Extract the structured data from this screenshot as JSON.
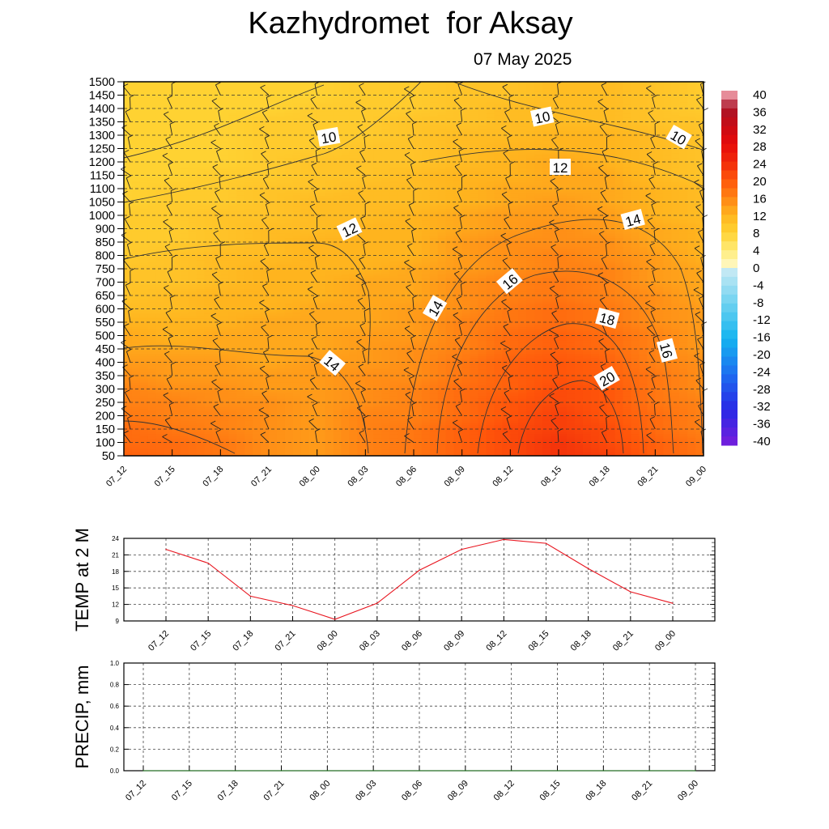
{
  "title": "Kazhydromet  for Aksay",
  "date": "07 May 2025",
  "chart_data": [
    {
      "type": "heatmap",
      "name": "temperature cross-section",
      "x_categories": [
        "07_12",
        "07_15",
        "07_18",
        "07_21",
        "08_00",
        "08_03",
        "08_06",
        "08_09",
        "08_12",
        "08_15",
        "08_18",
        "08_21",
        "09_00"
      ],
      "y_levels": [
        50,
        100,
        150,
        200,
        250,
        300,
        350,
        400,
        450,
        500,
        550,
        600,
        650,
        700,
        750,
        800,
        850,
        900,
        1000,
        1050,
        1100,
        1150,
        1200,
        1250,
        1300,
        1350,
        1400,
        1450,
        1500
      ],
      "values": [
        [
          19,
          18,
          18,
          17,
          16,
          16,
          15,
          14,
          13,
          13,
          12,
          11,
          10,
          10,
          10,
          9,
          9,
          9,
          9,
          8,
          8,
          8,
          8,
          8,
          8,
          8,
          8,
          8,
          8
        ],
        [
          18,
          18,
          17,
          16,
          16,
          15,
          14,
          14,
          13,
          12,
          12,
          11,
          11,
          10,
          10,
          10,
          9,
          9,
          9,
          9,
          9,
          8,
          8,
          8,
          8,
          8,
          8,
          8,
          8
        ],
        [
          17,
          17,
          16,
          16,
          15,
          15,
          14,
          14,
          13,
          13,
          12,
          12,
          12,
          11,
          11,
          11,
          10,
          10,
          10,
          9,
          9,
          9,
          8,
          8,
          8,
          8,
          8,
          8,
          8
        ],
        [
          15,
          15,
          15,
          15,
          15,
          14,
          14,
          13,
          13,
          13,
          13,
          12,
          12,
          12,
          12,
          11,
          11,
          11,
          10,
          10,
          10,
          9,
          9,
          9,
          9,
          9,
          8,
          8,
          8
        ],
        [
          14,
          14,
          14,
          14,
          14,
          14,
          14,
          14,
          13,
          13,
          13,
          13,
          12,
          12,
          12,
          12,
          12,
          11,
          11,
          11,
          10,
          10,
          10,
          9,
          9,
          9,
          9,
          8,
          8
        ],
        [
          16,
          16,
          16,
          16,
          15,
          15,
          15,
          14,
          14,
          14,
          13,
          13,
          13,
          13,
          12,
          12,
          12,
          12,
          11,
          11,
          11,
          10,
          10,
          10,
          9,
          9,
          9,
          9,
          9
        ],
        [
          17,
          17,
          17,
          16,
          16,
          16,
          15,
          15,
          15,
          14,
          14,
          14,
          13,
          13,
          13,
          12,
          12,
          12,
          12,
          11,
          11,
          11,
          10,
          10,
          10,
          10,
          9,
          9,
          9
        ],
        [
          19,
          19,
          19,
          18,
          18,
          18,
          17,
          17,
          16,
          16,
          16,
          15,
          15,
          15,
          14,
          14,
          14,
          13,
          13,
          12,
          12,
          12,
          11,
          11,
          11,
          10,
          10,
          10,
          10
        ],
        [
          21,
          21,
          21,
          20,
          20,
          19,
          19,
          19,
          18,
          18,
          17,
          17,
          16,
          16,
          15,
          15,
          15,
          14,
          14,
          13,
          13,
          12,
          12,
          12,
          11,
          11,
          11,
          10,
          10
        ],
        [
          23,
          23,
          22,
          22,
          21,
          21,
          20,
          20,
          19,
          19,
          18,
          18,
          17,
          17,
          16,
          16,
          15,
          15,
          14,
          14,
          13,
          13,
          13,
          12,
          12,
          11,
          11,
          11,
          11
        ],
        [
          22,
          21,
          21,
          20,
          20,
          20,
          19,
          19,
          18,
          18,
          17,
          17,
          16,
          16,
          16,
          15,
          15,
          14,
          14,
          13,
          13,
          13,
          12,
          12,
          12,
          11,
          11,
          11,
          11
        ],
        [
          19,
          19,
          18,
          18,
          17,
          17,
          17,
          16,
          16,
          16,
          15,
          15,
          15,
          14,
          14,
          14,
          13,
          13,
          12,
          12,
          12,
          11,
          11,
          11,
          11,
          10,
          10,
          10,
          10
        ],
        [
          17,
          17,
          16,
          16,
          16,
          15,
          15,
          15,
          14,
          14,
          14,
          14,
          13,
          13,
          13,
          12,
          12,
          12,
          11,
          11,
          11,
          10,
          10,
          10,
          10,
          10,
          9,
          9,
          9
        ]
      ],
      "contour_labels": [
        "10",
        "10",
        "10",
        "12",
        "12",
        "14",
        "14",
        "14",
        "16",
        "16",
        "18",
        "20",
        "16",
        "12"
      ],
      "colorbar": {
        "ticks": [
          "40",
          "36",
          "32",
          "28",
          "24",
          "20",
          "16",
          "12",
          "8",
          "4",
          "0",
          "-4",
          "-8",
          "-12",
          "-16",
          "-20",
          "-24",
          "-28",
          "-32",
          "-36",
          "-40"
        ],
        "range": [
          -40,
          40
        ]
      }
    },
    {
      "type": "line",
      "ylabel": "TEMP at 2 M",
      "categories": [
        "07_12",
        "07_15",
        "07_18",
        "07_21",
        "08_00",
        "08_03",
        "08_06",
        "08_09",
        "08_12",
        "08_15",
        "08_18",
        "08_21",
        "09_00"
      ],
      "values": [
        22.0,
        19.5,
        13.5,
        11.8,
        9.3,
        12.2,
        18.2,
        22.0,
        23.8,
        23.1,
        18.5,
        14.3,
        12.2
      ],
      "ylim": [
        9,
        24
      ],
      "yticks": [
        "24",
        "21",
        "18",
        "15",
        "12",
        "9"
      ],
      "line_color": "#e8141e"
    },
    {
      "type": "line",
      "ylabel": "PRECIP, mm",
      "categories": [
        "07_12",
        "07_15",
        "07_18",
        "07_21",
        "08_00",
        "08_03",
        "08_06",
        "08_09",
        "08_12",
        "08_15",
        "08_18",
        "08_21",
        "09_00"
      ],
      "values": [
        0,
        0,
        0,
        0,
        0,
        0,
        0,
        0,
        0,
        0,
        0,
        0,
        0
      ],
      "ylim": [
        0,
        1
      ],
      "yticks": [
        "1.0",
        "0.8",
        "0.6",
        "0.4",
        "0.2",
        "0.0"
      ],
      "line_color": "#1f7a1f"
    }
  ]
}
